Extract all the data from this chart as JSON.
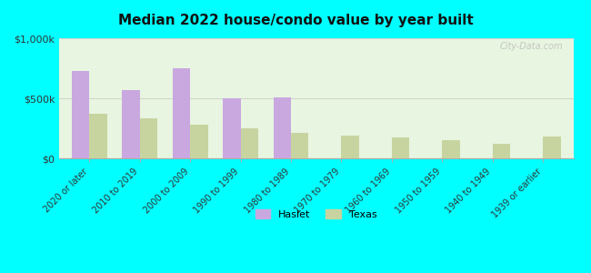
{
  "title": "Median 2022 house/condo value by year built",
  "categories": [
    "2020 or later",
    "2010 to 2019",
    "2000 to 2009",
    "1990 to 1999",
    "1980 to 1989",
    "1970 to 1979",
    "1960 to 1969",
    "1950 to 1959",
    "1940 to 1949",
    "1939 or earlier"
  ],
  "haslet_values": [
    730000,
    570000,
    750000,
    500000,
    510000,
    0,
    0,
    0,
    0,
    0
  ],
  "texas_values": [
    370000,
    330000,
    280000,
    250000,
    215000,
    190000,
    175000,
    155000,
    125000,
    185000
  ],
  "haslet_color": "#c9a8e0",
  "texas_color": "#c8d4a0",
  "background_color": "#00ffff",
  "plot_bg_color_top": "#e8f5e0",
  "plot_bg_color_bottom": "#f5faf0",
  "ylim": [
    0,
    1000000
  ],
  "yticks": [
    0,
    500000,
    1000000
  ],
  "ytick_labels": [
    "$0",
    "$500k",
    "$1,000k"
  ],
  "bar_width": 0.35,
  "legend_labels": [
    "Haslet",
    "Texas"
  ],
  "watermark": "City-Data.com"
}
